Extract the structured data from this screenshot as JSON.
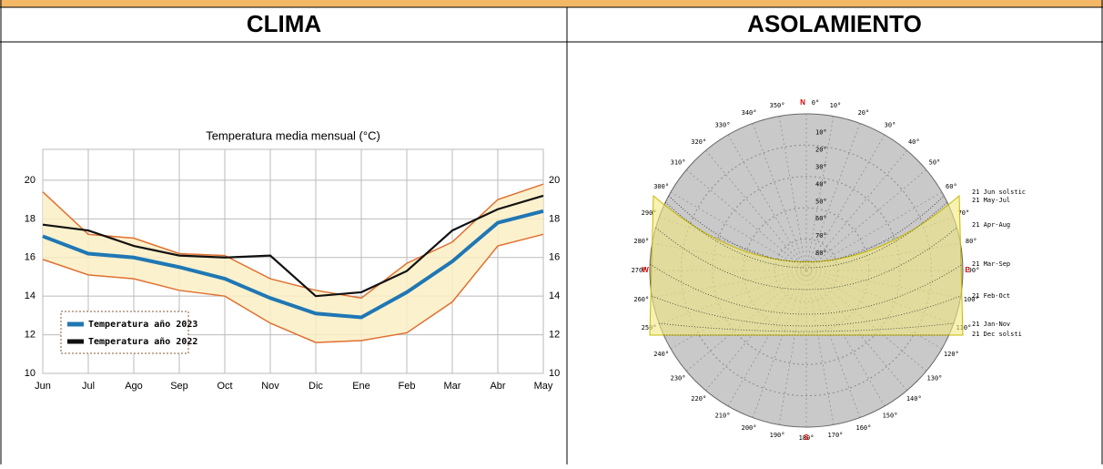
{
  "header": {
    "left": "CLIMA",
    "right": "ASOLAMIENTO"
  },
  "chart_data": {
    "type": "line",
    "title": "Temperatura media mensual (°C)",
    "categories": [
      "Jun",
      "Jul",
      "Ago",
      "Sep",
      "Oct",
      "Nov",
      "Dic",
      "Ene",
      "Feb",
      "Mar",
      "Abr",
      "May"
    ],
    "series": [
      {
        "name": "Temperatura año 2023",
        "color": "#1f77b4",
        "values": [
          17.1,
          16.2,
          16.0,
          15.5,
          14.9,
          13.9,
          13.1,
          12.9,
          14.2,
          15.8,
          17.8,
          18.4
        ]
      },
      {
        "name": "Temperatura año 2022",
        "color": "#111111",
        "values": [
          17.7,
          17.4,
          16.6,
          16.1,
          16.0,
          16.1,
          14.0,
          14.2,
          15.3,
          17.4,
          18.5,
          19.2
        ]
      }
    ],
    "band": {
      "color": "#fbefc4",
      "edge_color": "#e07030",
      "upper": [
        19.4,
        17.2,
        17.0,
        16.2,
        16.1,
        14.9,
        14.3,
        13.9,
        15.7,
        16.8,
        19.0,
        19.8
      ],
      "lower": [
        15.9,
        15.1,
        14.9,
        14.3,
        14.0,
        12.6,
        11.6,
        11.7,
        12.1,
        13.7,
        16.6,
        17.2
      ]
    },
    "ylim": [
      10,
      21.6
    ],
    "yticks": [
      10,
      12,
      14,
      16,
      18,
      20
    ],
    "grid": true
  },
  "sun_path": {
    "azimuth_labels": [
      "0°",
      "10°",
      "20°",
      "30°",
      "40°",
      "50°",
      "60°",
      "70°",
      "80°",
      "90°",
      "100°",
      "110°",
      "120°",
      "130°",
      "140°",
      "150°",
      "160°",
      "170°",
      "180°",
      "190°",
      "200°",
      "210°",
      "220°",
      "230°",
      "240°",
      "250°",
      "260°",
      "270°",
      "280°",
      "290°",
      "300°",
      "310°",
      "320°",
      "330°",
      "340°",
      "350°"
    ],
    "cardinals": [
      "N",
      "E",
      "S",
      "W"
    ],
    "altitude_labels": [
      "10°",
      "20°",
      "30°",
      "40°",
      "50°",
      "60°",
      "70°",
      "80°"
    ],
    "date_labels": [
      "21 Jun  solstic",
      "21 May-Jul",
      "21 Apr-Aug",
      "21 Mar-Sep",
      "21 Feb-Oct",
      "21 Jan-Nov",
      "21 Dec  solsti"
    ]
  }
}
